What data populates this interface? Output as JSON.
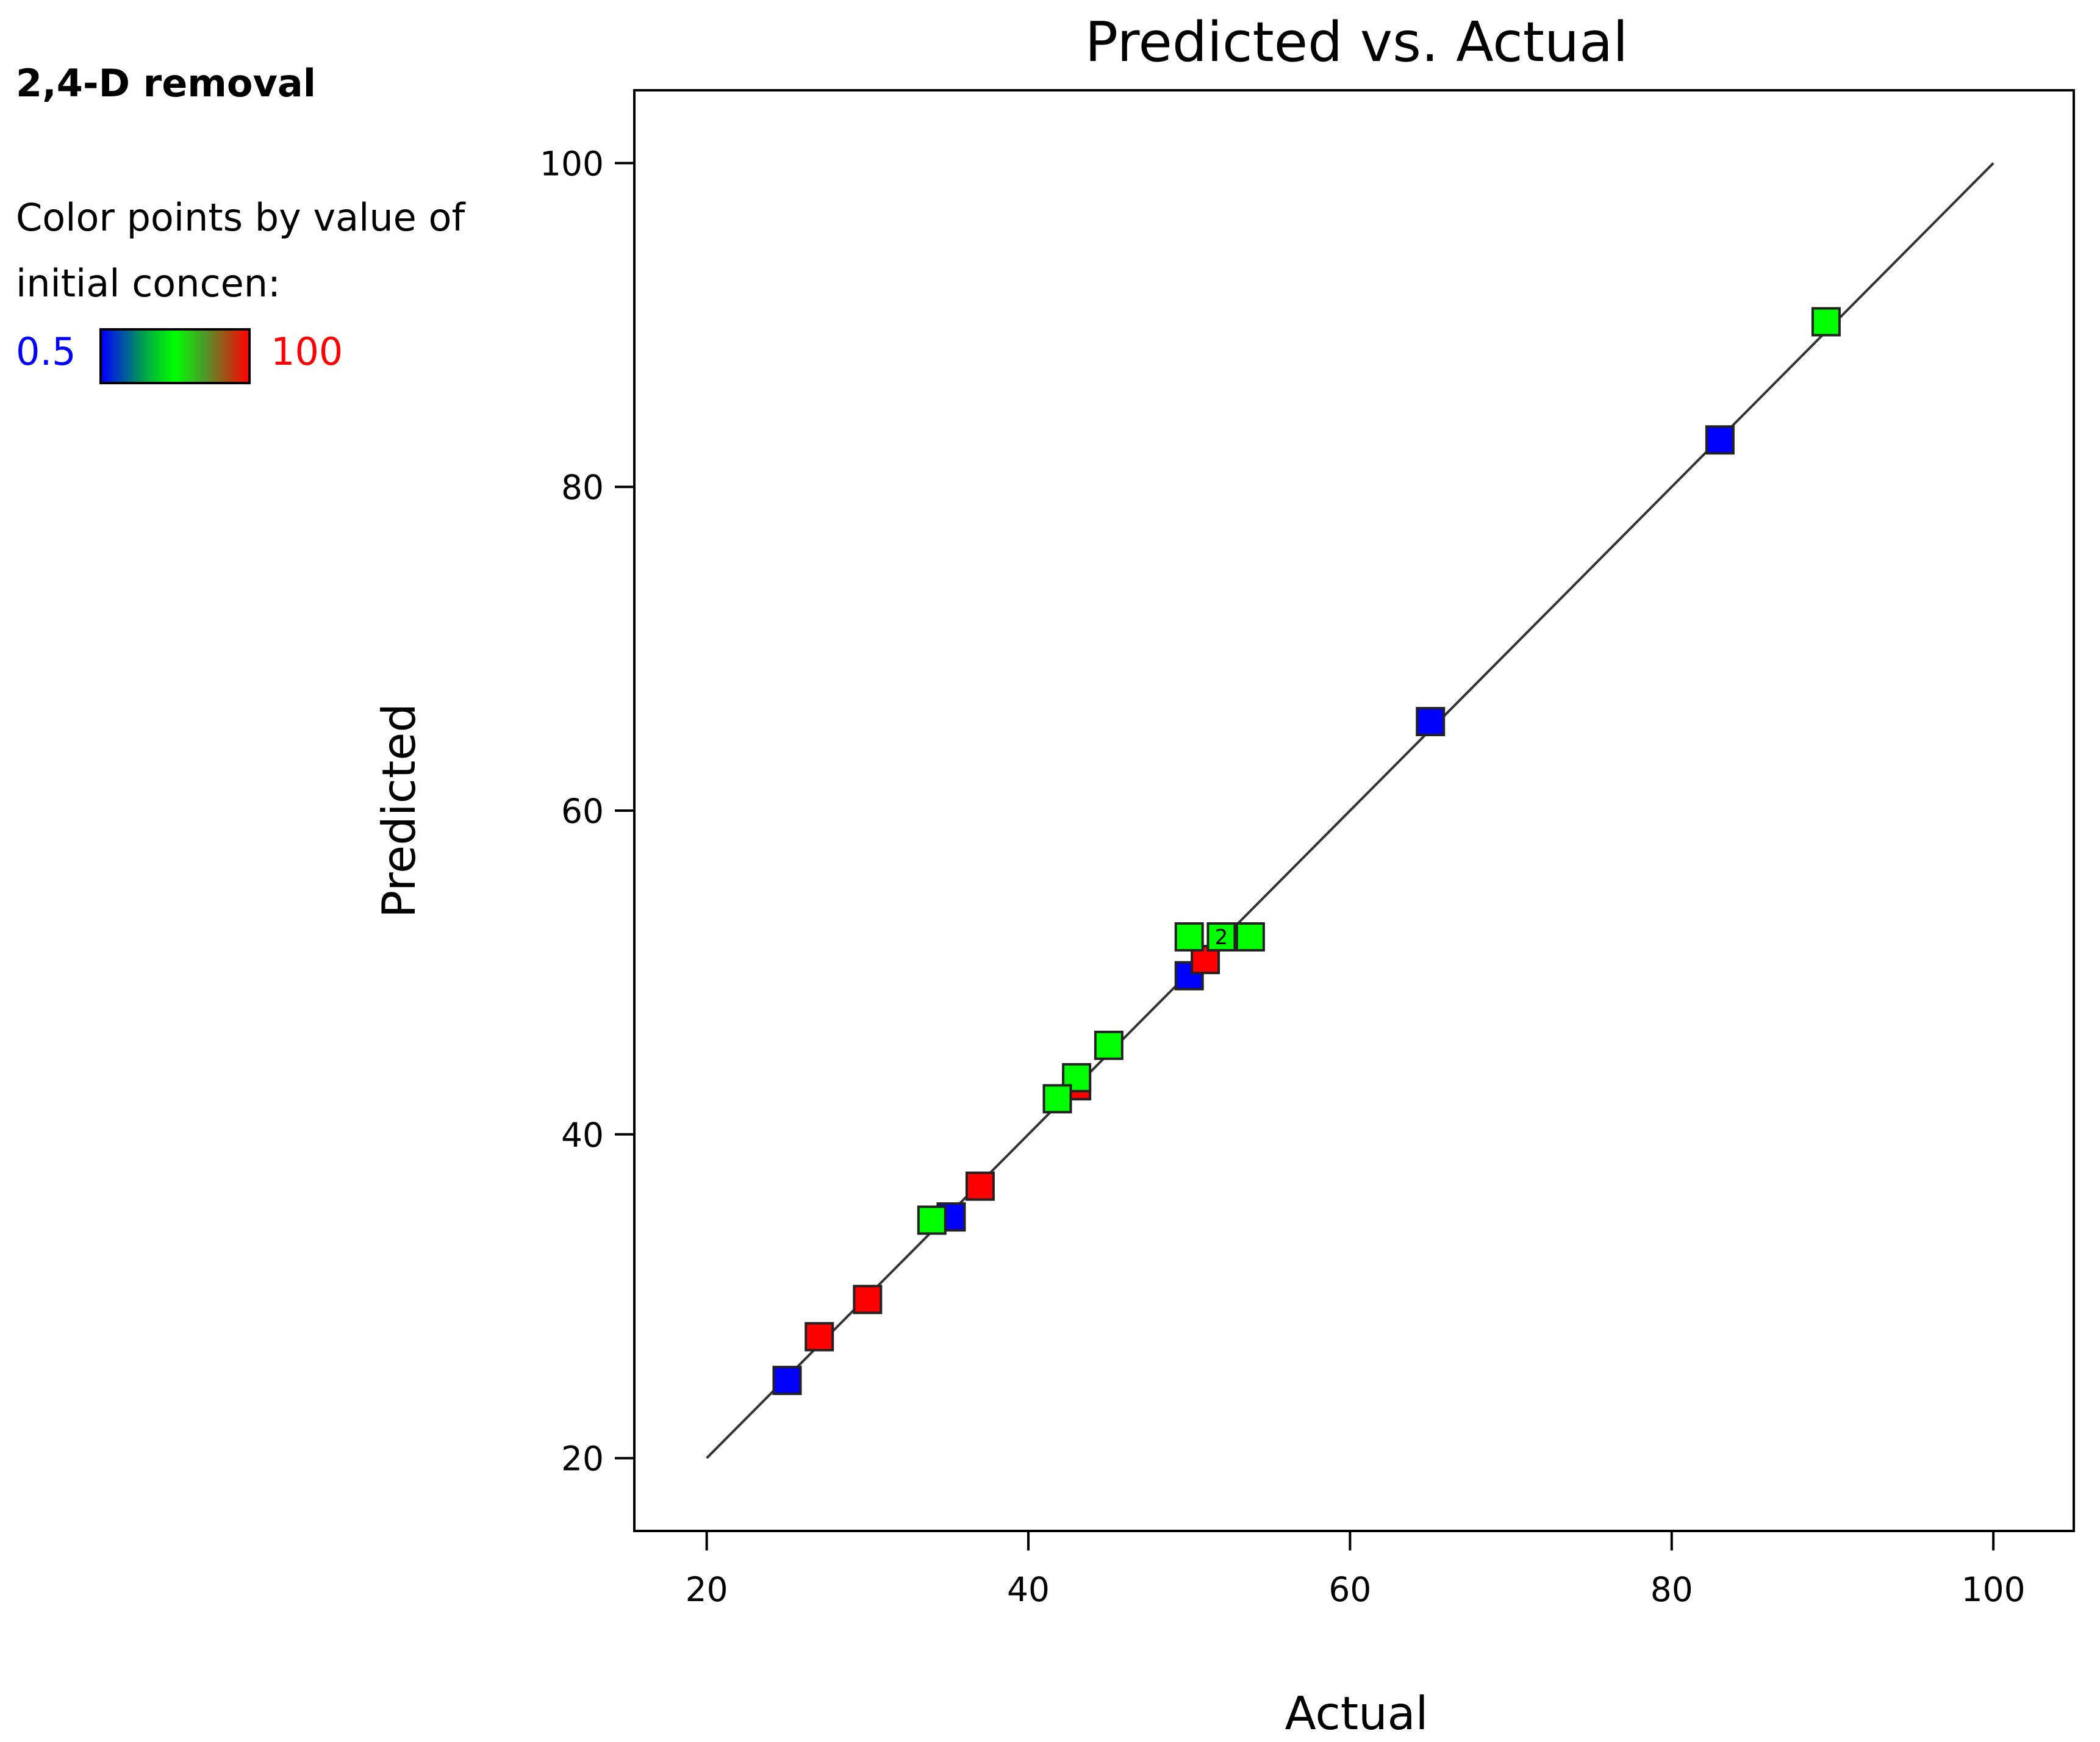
{
  "legend": {
    "title": "2,4-D removal",
    "line1": "Color points by value of",
    "line2": "initial concen:",
    "min_label": "0.5",
    "max_label": "100",
    "min_color": "#0000ff",
    "max_color": "#ff0000"
  },
  "chart_data": {
    "type": "scatter",
    "title": "Predicted vs. Actual",
    "xlabel": "Actual",
    "ylabel": "Predicted",
    "xlim": [
      15.5,
      105
    ],
    "ylim": [
      15.5,
      104.5
    ],
    "xticks": [
      20,
      40,
      60,
      80,
      100
    ],
    "yticks": [
      20,
      40,
      60,
      80,
      100
    ],
    "reference_line": {
      "from": [
        20,
        20
      ],
      "to": [
        100,
        100
      ]
    },
    "grid": false,
    "colors": {
      "blue": "#0000ff",
      "green": "#00ff00",
      "red": "#ff0000"
    },
    "points": [
      {
        "x": 25.0,
        "y": 24.8,
        "color": "blue"
      },
      {
        "x": 27.0,
        "y": 27.5,
        "color": "red"
      },
      {
        "x": 30.0,
        "y": 29.8,
        "color": "red"
      },
      {
        "x": 35.2,
        "y": 34.9,
        "color": "blue"
      },
      {
        "x": 34.0,
        "y": 34.7,
        "color": "green"
      },
      {
        "x": 37.0,
        "y": 36.8,
        "color": "red"
      },
      {
        "x": 43.0,
        "y": 43.0,
        "color": "red"
      },
      {
        "x": 43.0,
        "y": 43.5,
        "color": "green"
      },
      {
        "x": 41.8,
        "y": 42.2,
        "color": "green"
      },
      {
        "x": 45.0,
        "y": 45.5,
        "color": "green"
      },
      {
        "x": 50.0,
        "y": 49.8,
        "color": "blue"
      },
      {
        "x": 51.0,
        "y": 50.8,
        "color": "red"
      },
      {
        "x": 50.0,
        "y": 52.2,
        "color": "green"
      },
      {
        "x": 52.0,
        "y": 52.2,
        "color": "green",
        "label": "2"
      },
      {
        "x": 53.8,
        "y": 52.2,
        "color": "green"
      },
      {
        "x": 65.0,
        "y": 65.5,
        "color": "blue"
      },
      {
        "x": 83.0,
        "y": 82.9,
        "color": "blue"
      },
      {
        "x": 89.6,
        "y": 90.2,
        "color": "green"
      }
    ]
  }
}
